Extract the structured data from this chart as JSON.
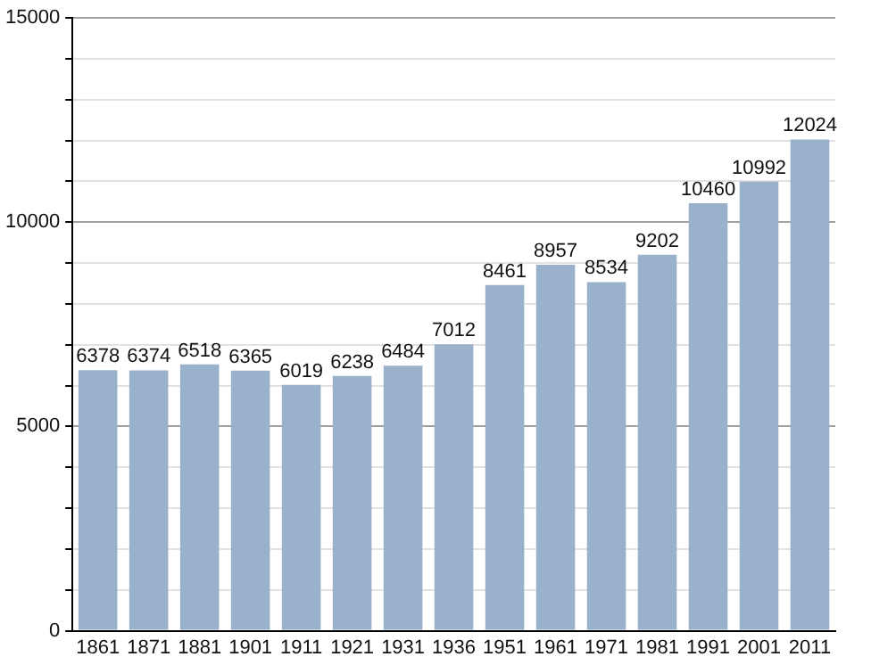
{
  "chart_data": {
    "type": "bar",
    "categories": [
      "1861",
      "1871",
      "1881",
      "1901",
      "1911",
      "1921",
      "1931",
      "1936",
      "1951",
      "1961",
      "1971",
      "1981",
      "1991",
      "2001",
      "2011"
    ],
    "values": [
      6378,
      6374,
      6518,
      6365,
      6019,
      6238,
      6484,
      7012,
      8461,
      8957,
      8534,
      9202,
      10460,
      10992,
      12024
    ],
    "color": "#9ab1cc",
    "ylim": [
      0,
      15000
    ],
    "yticks": [
      0,
      {
        "value": 1000,
        "label": null
      },
      {
        "value": 2000,
        "label": null
      },
      {
        "value": 3000,
        "label": null
      },
      {
        "value": 4000,
        "label": null
      },
      5000,
      {
        "value": 6000,
        "label": null
      },
      {
        "value": 7000,
        "label": null
      },
      {
        "value": 8000,
        "label": null
      },
      {
        "value": 9000,
        "label": null
      },
      10000,
      {
        "value": 11000,
        "label": null
      },
      {
        "value": 12000,
        "label": null
      },
      {
        "value": 13000,
        "label": null
      },
      {
        "value": 14000,
        "label": null
      },
      15000
    ],
    "grid": "y",
    "data_labels": true
  }
}
